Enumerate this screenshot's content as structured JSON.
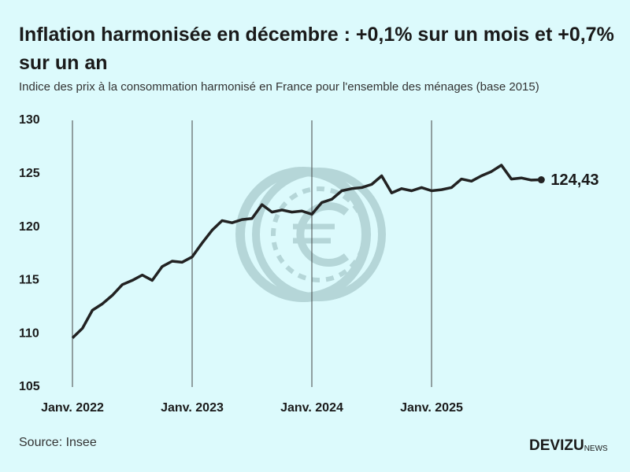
{
  "chart_data": {
    "type": "line",
    "title": "Inflation harmonisée en décembre : +0,1% sur un mois et +0,7% sur un an",
    "subtitle": "Indice des prix à la consommation harmonisé en France pour l'ensemble des ménages (base 2015)",
    "source": "Source: Insee",
    "brand": "DEVIZU",
    "brand_suffix": "NEWS",
    "categories": [
      "Janv. 2022",
      null,
      null,
      null,
      null,
      null,
      null,
      null,
      null,
      null,
      null,
      null,
      "Janv. 2023",
      null,
      null,
      null,
      null,
      null,
      null,
      null,
      null,
      null,
      null,
      null,
      "Janv. 2024",
      null,
      null,
      null,
      null,
      null,
      null,
      null,
      null,
      null,
      null,
      null,
      "Janv. 2025",
      null,
      null,
      null,
      null,
      null,
      null,
      null,
      null,
      null,
      null,
      null
    ],
    "values": [
      109.6,
      110.5,
      112.2,
      112.8,
      113.6,
      114.6,
      115.0,
      115.5,
      115.0,
      116.3,
      116.8,
      116.7,
      117.2,
      118.5,
      119.7,
      120.6,
      120.4,
      120.7,
      120.8,
      122.1,
      121.4,
      121.6,
      121.4,
      121.5,
      121.2,
      122.3,
      122.6,
      123.4,
      123.6,
      123.7,
      124.0,
      124.8,
      123.2,
      123.6,
      123.4,
      123.7,
      123.4,
      123.5,
      123.7,
      124.5,
      124.3,
      124.8,
      125.2,
      125.8,
      124.5,
      124.6,
      124.4,
      124.43
    ],
    "value_labels": [
      null,
      null,
      null,
      null,
      null,
      null,
      null,
      null,
      null,
      null,
      null,
      null,
      null,
      null,
      null,
      null,
      null,
      null,
      null,
      null,
      null,
      null,
      null,
      null,
      null,
      null,
      null,
      null,
      null,
      null,
      null,
      null,
      null,
      null,
      null,
      null,
      null,
      null,
      null,
      null,
      null,
      null,
      null,
      null,
      null,
      null,
      null,
      "124,43"
    ],
    "color": "#222222",
    "ylim": [
      105,
      130
    ],
    "yticks": [
      105,
      110,
      115,
      120,
      125,
      130
    ],
    "grid": "x"
  }
}
